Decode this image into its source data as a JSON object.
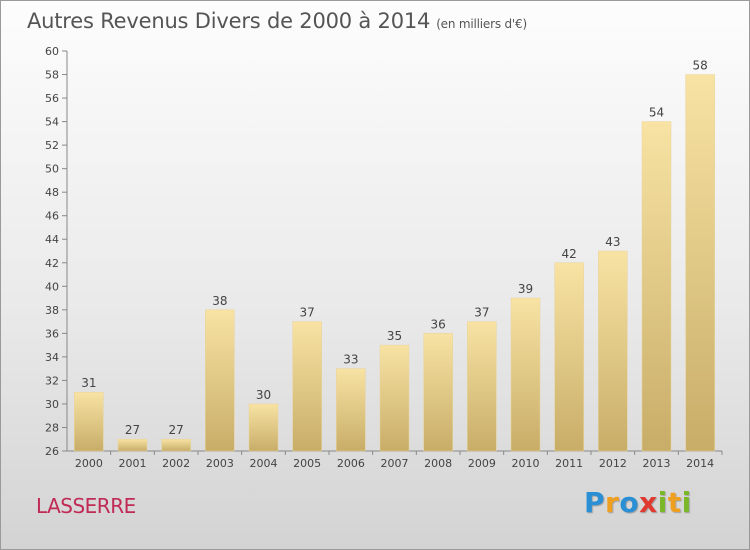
{
  "title": "Autres Revenus Divers de 2000 à 2014",
  "title_unit": "(en milliers d'€)",
  "place": "LASSERRE",
  "logo": {
    "text": "Proxiti",
    "letters": [
      {
        "ch": "P",
        "color": "#2a8fd4"
      },
      {
        "ch": "r",
        "color": "#f0a020"
      },
      {
        "ch": "o",
        "color": "#2a8fd4"
      },
      {
        "ch": "x",
        "color": "#e03a30"
      },
      {
        "ch": "i",
        "color": "#7ab82a"
      },
      {
        "ch": "t",
        "color": "#f0a020"
      },
      {
        "ch": "i",
        "color": "#7ab82a"
      }
    ]
  },
  "colors": {
    "bar_light": "#f8e3a4",
    "bar_dark": "#c8ad68",
    "axis": "#888888",
    "grid": "#bbbbbb",
    "text": "#444444"
  },
  "chart_data": {
    "type": "bar",
    "title": "Autres Revenus Divers de 2000 à 2014",
    "xlabel": "",
    "ylabel": "",
    "categories": [
      "2000",
      "2001",
      "2002",
      "2003",
      "2004",
      "2005",
      "2006",
      "2007",
      "2008",
      "2009",
      "2010",
      "2011",
      "2012",
      "2013",
      "2014"
    ],
    "values": [
      31,
      27,
      27,
      38,
      30,
      37,
      33,
      35,
      36,
      37,
      39,
      42,
      43,
      54,
      58
    ],
    "ylim": [
      26,
      60
    ],
    "yticks": [
      26,
      28,
      30,
      32,
      34,
      36,
      38,
      40,
      42,
      44,
      46,
      48,
      50,
      52,
      54,
      56,
      58,
      60
    ],
    "data_labels": true,
    "grid": false
  }
}
